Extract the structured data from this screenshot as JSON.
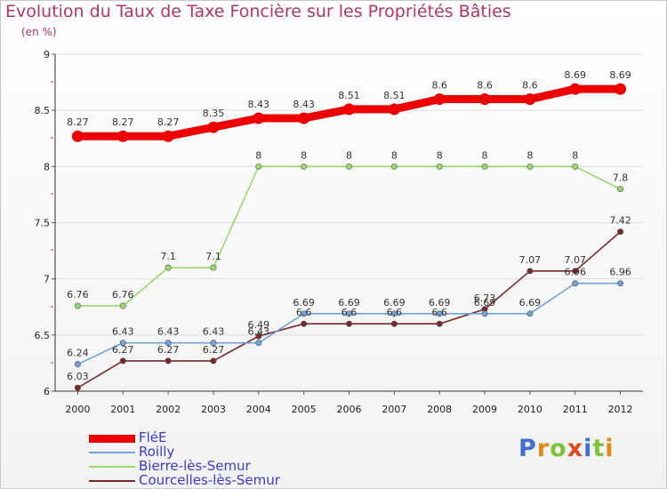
{
  "header": {
    "title": "Evolution du Taux de Taxe Foncière sur les Propriétés Bâties",
    "unit": "(en %)"
  },
  "logo": {
    "text": "Proxiti",
    "icon": "proxiti-logo"
  },
  "colors": {
    "title": "#b4336a",
    "legend_text": "#3a3ad8",
    "grid": "#dddddd"
  },
  "chart_data": {
    "type": "line",
    "x": [
      "2000",
      "2001",
      "2002",
      "2003",
      "2004",
      "2005",
      "2006",
      "2007",
      "2008",
      "2009",
      "2010",
      "2011",
      "2012"
    ],
    "ylim": [
      6,
      9
    ],
    "yticks": [
      6,
      6.5,
      7,
      7.5,
      8,
      8.5,
      9
    ],
    "ytick_labels": [
      "6",
      "6.5",
      "7",
      "7.5",
      "8",
      "8.5",
      "9"
    ],
    "grid": "horizontal",
    "legend_position": "bottom-left",
    "title": "Evolution du Taux de Taxe Foncière sur les Propriétés Bâties",
    "xlabel": "",
    "ylabel": "(en %)",
    "series": [
      {
        "name": "FléE",
        "color": "#ee0000",
        "values": [
          8.27,
          8.27,
          8.27,
          8.35,
          8.43,
          8.43,
          8.51,
          8.51,
          8.6,
          8.6,
          8.6,
          8.69,
          8.69
        ]
      },
      {
        "name": "Roilly",
        "color": "#6fa2d8",
        "values": [
          6.24,
          6.43,
          6.43,
          6.43,
          6.43,
          6.69,
          6.69,
          6.69,
          6.69,
          6.69,
          6.69,
          6.96,
          6.96
        ]
      },
      {
        "name": "Bierre-lès-Semur",
        "color": "#9ad86b",
        "values": [
          6.76,
          6.76,
          7.1,
          7.1,
          8,
          8,
          8,
          8,
          8,
          8,
          8,
          8,
          7.8
        ]
      },
      {
        "name": "Courcelles-lès-Semur",
        "color": "#7a2828",
        "values": [
          6.03,
          6.27,
          6.27,
          6.27,
          6.49,
          6.6,
          6.6,
          6.6,
          6.6,
          6.73,
          7.07,
          7.07,
          7.42
        ]
      }
    ]
  }
}
